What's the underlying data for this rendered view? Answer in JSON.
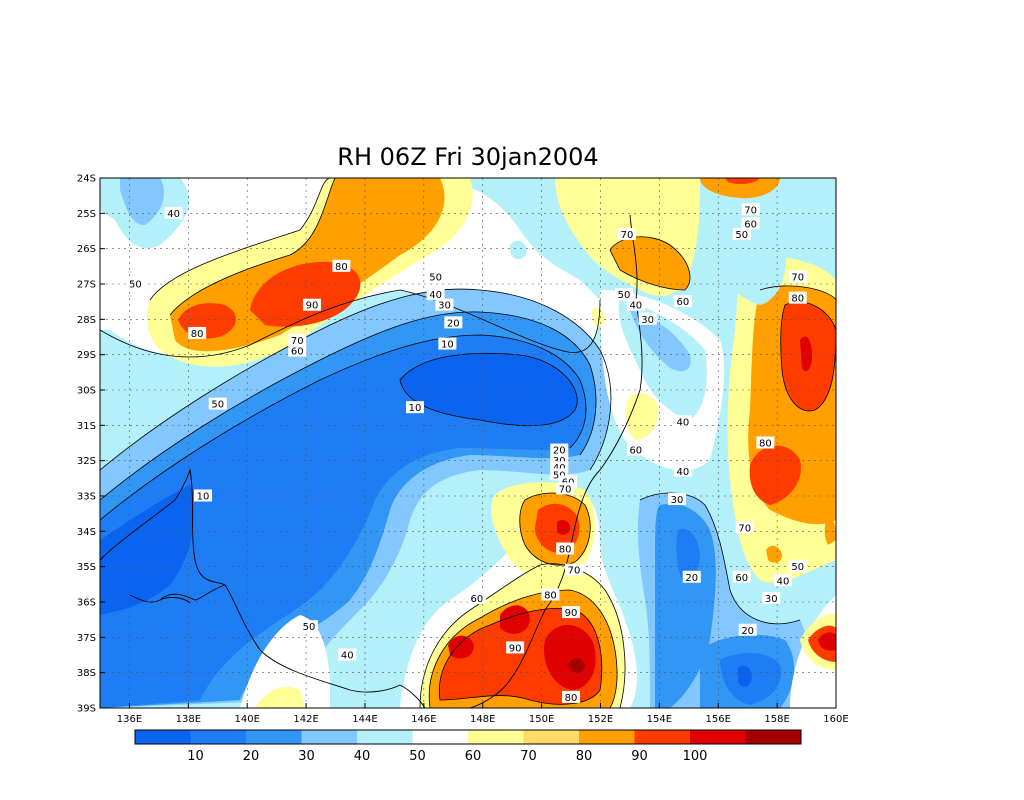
{
  "title": "RH 06Z Fri 30jan2004",
  "map": {
    "lon_range": [
      135,
      160
    ],
    "lat_range": [
      -39,
      -24
    ],
    "x_ticks": [
      {
        "value": 136,
        "label": "136E"
      },
      {
        "value": 138,
        "label": "138E"
      },
      {
        "value": 140,
        "label": "140E"
      },
      {
        "value": 142,
        "label": "142E"
      },
      {
        "value": 144,
        "label": "144E"
      },
      {
        "value": 146,
        "label": "146E"
      },
      {
        "value": 148,
        "label": "148E"
      },
      {
        "value": 150,
        "label": "150E"
      },
      {
        "value": 152,
        "label": "152E"
      },
      {
        "value": 154,
        "label": "154E"
      },
      {
        "value": 156,
        "label": "156E"
      },
      {
        "value": 158,
        "label": "158E"
      },
      {
        "value": 160,
        "label": "160E"
      }
    ],
    "y_ticks": [
      {
        "value": -24,
        "label": "24S"
      },
      {
        "value": -25,
        "label": "25S"
      },
      {
        "value": -26,
        "label": "26S"
      },
      {
        "value": -27,
        "label": "27S"
      },
      {
        "value": -28,
        "label": "28S"
      },
      {
        "value": -29,
        "label": "29S"
      },
      {
        "value": -30,
        "label": "30S"
      },
      {
        "value": -31,
        "label": "31S"
      },
      {
        "value": -32,
        "label": "32S"
      },
      {
        "value": -33,
        "label": "33S"
      },
      {
        "value": -34,
        "label": "34S"
      },
      {
        "value": -35,
        "label": "35S"
      },
      {
        "value": -36,
        "label": "36S"
      },
      {
        "value": -37,
        "label": "37S"
      },
      {
        "value": -38,
        "label": "38S"
      },
      {
        "value": -39,
        "label": "39S"
      }
    ],
    "grid": true,
    "contour_labels": [
      {
        "lon": 137.5,
        "lat": -25.0,
        "label": "40"
      },
      {
        "lon": 136.2,
        "lat": -27.0,
        "label": "50"
      },
      {
        "lon": 138.3,
        "lat": -28.4,
        "label": "80"
      },
      {
        "lon": 142.2,
        "lat": -27.6,
        "label": "90"
      },
      {
        "lon": 143.2,
        "lat": -26.5,
        "label": "80"
      },
      {
        "lon": 141.7,
        "lat": -28.6,
        "label": "70"
      },
      {
        "lon": 141.7,
        "lat": -28.9,
        "label": "60"
      },
      {
        "lon": 139.0,
        "lat": -30.4,
        "label": "50"
      },
      {
        "lon": 146.4,
        "lat": -26.8,
        "label": "50"
      },
      {
        "lon": 146.4,
        "lat": -27.3,
        "label": "40"
      },
      {
        "lon": 146.7,
        "lat": -27.6,
        "label": "30"
      },
      {
        "lon": 147.0,
        "lat": -28.1,
        "label": "20"
      },
      {
        "lon": 146.8,
        "lat": -28.7,
        "label": "10"
      },
      {
        "lon": 145.7,
        "lat": -30.5,
        "label": "10"
      },
      {
        "lon": 150.6,
        "lat": -31.7,
        "label": "20"
      },
      {
        "lon": 150.6,
        "lat": -32.0,
        "label": "30"
      },
      {
        "lon": 150.6,
        "lat": -32.2,
        "label": "40"
      },
      {
        "lon": 150.6,
        "lat": -32.4,
        "label": "50"
      },
      {
        "lon": 150.9,
        "lat": -32.6,
        "label": "60"
      },
      {
        "lon": 150.8,
        "lat": -32.8,
        "label": "70"
      },
      {
        "lon": 150.8,
        "lat": -34.5,
        "label": "80"
      },
      {
        "lon": 151.1,
        "lat": -35.1,
        "label": "70"
      },
      {
        "lon": 150.3,
        "lat": -35.8,
        "label": "80"
      },
      {
        "lon": 147.8,
        "lat": -35.9,
        "label": "60"
      },
      {
        "lon": 151.0,
        "lat": -36.3,
        "label": "90"
      },
      {
        "lon": 149.1,
        "lat": -37.3,
        "label": "90"
      },
      {
        "lon": 151.0,
        "lat": -38.7,
        "label": "80"
      },
      {
        "lon": 142.1,
        "lat": -36.7,
        "label": "50"
      },
      {
        "lon": 143.4,
        "lat": -37.5,
        "label": "40"
      },
      {
        "lon": 138.5,
        "lat": -33.0,
        "label": "10"
      },
      {
        "lon": 152.9,
        "lat": -25.6,
        "label": "70"
      },
      {
        "lon": 152.8,
        "lat": -27.3,
        "label": "50"
      },
      {
        "lon": 153.2,
        "lat": -27.6,
        "label": "40"
      },
      {
        "lon": 153.6,
        "lat": -28.0,
        "label": "30"
      },
      {
        "lon": 154.8,
        "lat": -27.5,
        "label": "60"
      },
      {
        "lon": 153.2,
        "lat": -31.7,
        "label": "60"
      },
      {
        "lon": 154.8,
        "lat": -30.9,
        "label": "40"
      },
      {
        "lon": 154.8,
        "lat": -32.3,
        "label": "40"
      },
      {
        "lon": 154.6,
        "lat": -33.1,
        "label": "30"
      },
      {
        "lon": 155.1,
        "lat": -35.3,
        "label": "20"
      },
      {
        "lon": 157.1,
        "lat": -24.9,
        "label": "70"
      },
      {
        "lon": 157.1,
        "lat": -25.3,
        "label": "60"
      },
      {
        "lon": 156.8,
        "lat": -25.6,
        "label": "50"
      },
      {
        "lon": 158.7,
        "lat": -26.8,
        "label": "70"
      },
      {
        "lon": 158.7,
        "lat": -27.4,
        "label": "80"
      },
      {
        "lon": 157.6,
        "lat": -31.5,
        "label": "80"
      },
      {
        "lon": 156.9,
        "lat": -33.9,
        "label": "70"
      },
      {
        "lon": 156.8,
        "lat": -35.3,
        "label": "60"
      },
      {
        "lon": 158.2,
        "lat": -35.4,
        "label": "40"
      },
      {
        "lon": 158.7,
        "lat": -35.0,
        "label": "50"
      },
      {
        "lon": 157.8,
        "lat": -35.9,
        "label": "30"
      },
      {
        "lon": 157.0,
        "lat": -36.8,
        "label": "20"
      }
    ]
  },
  "colorbar": {
    "colors": [
      "#0a64f0",
      "#1e7cf5",
      "#3296f5",
      "#82c8ff",
      "#b4f0fa",
      "#ffffff",
      "#ffff96",
      "#ffdc64",
      "#ffa000",
      "#ff3c00",
      "#e10000",
      "#a50000"
    ],
    "labels": [
      "10",
      "20",
      "30",
      "40",
      "50",
      "60",
      "70",
      "80",
      "90",
      "100"
    ]
  }
}
